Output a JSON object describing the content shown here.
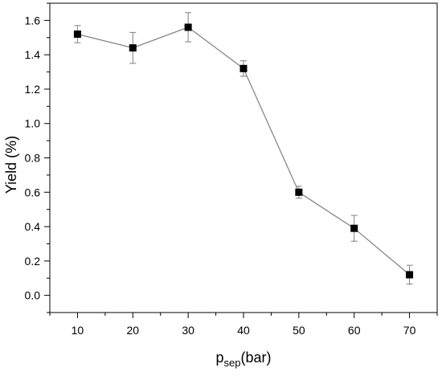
{
  "chart_data": {
    "type": "line",
    "xlabel_main": "p",
    "xlabel_sub": "sep",
    "xlabel_tail": "(bar)",
    "ylabel": "Yield (%)",
    "xlim": [
      5,
      75
    ],
    "ylim": [
      -0.1,
      1.7
    ],
    "x_ticks": [
      10,
      20,
      30,
      40,
      50,
      60,
      70
    ],
    "x_tick_labels": [
      "10",
      "20",
      "30",
      "40",
      "50",
      "60",
      "70"
    ],
    "y_ticks": [
      0.0,
      0.2,
      0.4,
      0.6,
      0.8,
      1.0,
      1.2,
      1.4,
      1.6
    ],
    "y_tick_labels": [
      "0.0",
      "0.2",
      "0.4",
      "0.6",
      "0.8",
      "1.0",
      "1.2",
      "1.4",
      "1.6"
    ],
    "grid": false,
    "series": [
      {
        "marker": "square",
        "color": "#000000",
        "line_color": "#7f7f7f",
        "x": [
          10,
          20,
          30,
          40,
          50,
          60,
          70
        ],
        "y": [
          1.52,
          1.44,
          1.56,
          1.32,
          0.6,
          0.39,
          0.12
        ],
        "error": [
          0.05,
          0.09,
          0.085,
          0.045,
          0.035,
          0.075,
          0.055
        ]
      }
    ]
  }
}
